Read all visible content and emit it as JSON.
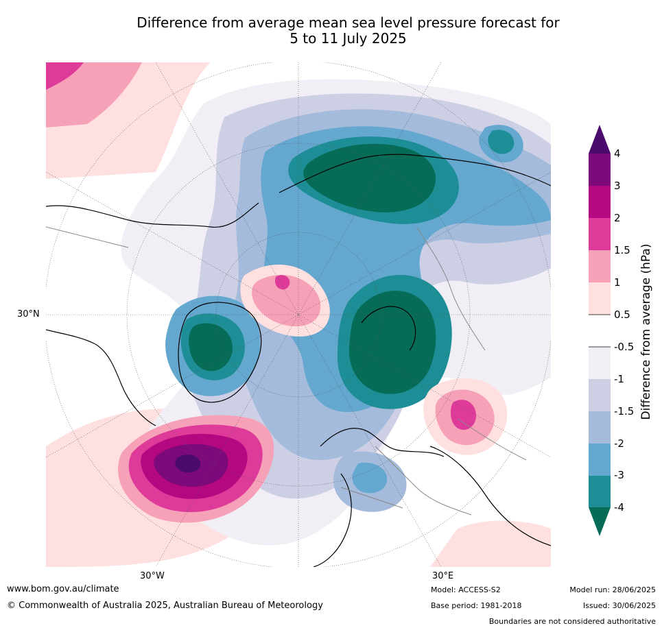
{
  "title": {
    "line1": "Difference from average mean sea level pressure forecast for",
    "line2": "5 to 11 July 2025"
  },
  "map": {
    "lat_label": "30°N",
    "lon_labels": [
      "30°W",
      "30°E"
    ]
  },
  "colorbar": {
    "label": "Difference from average (hPa)",
    "ticks": [
      "4",
      "3",
      "2",
      "1.5",
      "1",
      "0.5",
      "-0.5",
      "-1",
      "-1.5",
      "-2",
      "-3",
      "-4"
    ],
    "colors": {
      "above_4": "#4b0a6e",
      "3_to_4": "#7c0a7b",
      "2_to_3": "#b3087f",
      "1.5_to_2": "#de3a9a",
      "1_to_1.5": "#f7a1b9",
      "0.5_to_1": "#fde0df",
      "m0.5_to_0.5": "#ffffff",
      "m1_to_m0.5": "#f1eef6",
      "m1.5_to_m1": "#cdcfe5",
      "m2_to_m1.5": "#a5bbdb",
      "m3_to_m2": "#64a7cf",
      "m4_to_m3": "#1e8e96",
      "below_m4": "#066c57"
    }
  },
  "footer": {
    "url": "www.bom.gov.au/climate",
    "copyright": "© Commonwealth of Australia 2025, Australian Bureau of Meteorology",
    "model": "Model: ACCESS-S2",
    "base_period": "Base period: 1981-2018",
    "model_run": "Model run: 28/06/2025",
    "issued": "Issued: 30/06/2025",
    "disclaimer": "Boundaries are not considered authoritative"
  }
}
